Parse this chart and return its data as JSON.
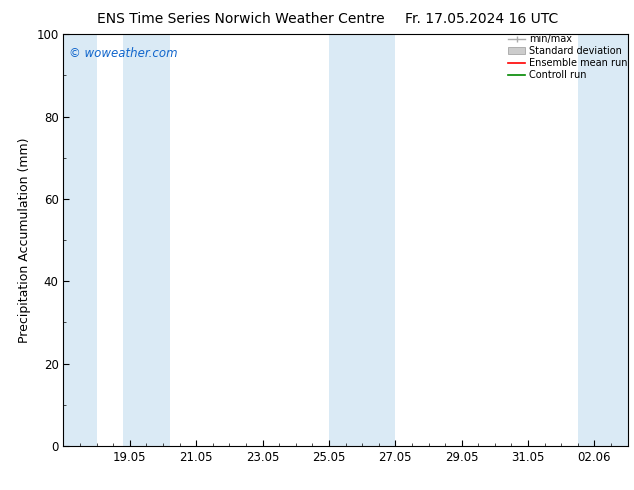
{
  "title_left": "ENS Time Series Norwich Weather Centre",
  "title_right": "Fr. 17.05.2024 16 UTC",
  "ylabel": "Precipitation Accumulation (mm)",
  "watermark": "© woweather.com",
  "ylim": [
    0,
    100
  ],
  "yticks": [
    0,
    20,
    40,
    60,
    80,
    100
  ],
  "xtick_labels": [
    "19.05",
    "21.05",
    "23.05",
    "25.05",
    "27.05",
    "29.05",
    "31.05",
    "02.06"
  ],
  "xtick_positions": [
    2,
    4,
    6,
    8,
    10,
    12,
    14,
    16
  ],
  "x_minor_positions_step": 0.5,
  "xlim": [
    0,
    17
  ],
  "band_color": "#daeaf5",
  "background_color": "#ffffff",
  "legend_entries": [
    "min/max",
    "Standard deviation",
    "Ensemble mean run",
    "Controll run"
  ],
  "legend_colors": [
    "#aaaaaa",
    "#cccccc",
    "#ff0000",
    "#008800"
  ],
  "shaded_bands": [
    [
      0.0,
      1.5
    ],
    [
      1.5,
      3.0
    ],
    [
      7.5,
      9.5
    ],
    [
      15.5,
      17.0
    ]
  ],
  "title_fontsize": 10,
  "tick_fontsize": 8.5,
  "ylabel_fontsize": 9
}
